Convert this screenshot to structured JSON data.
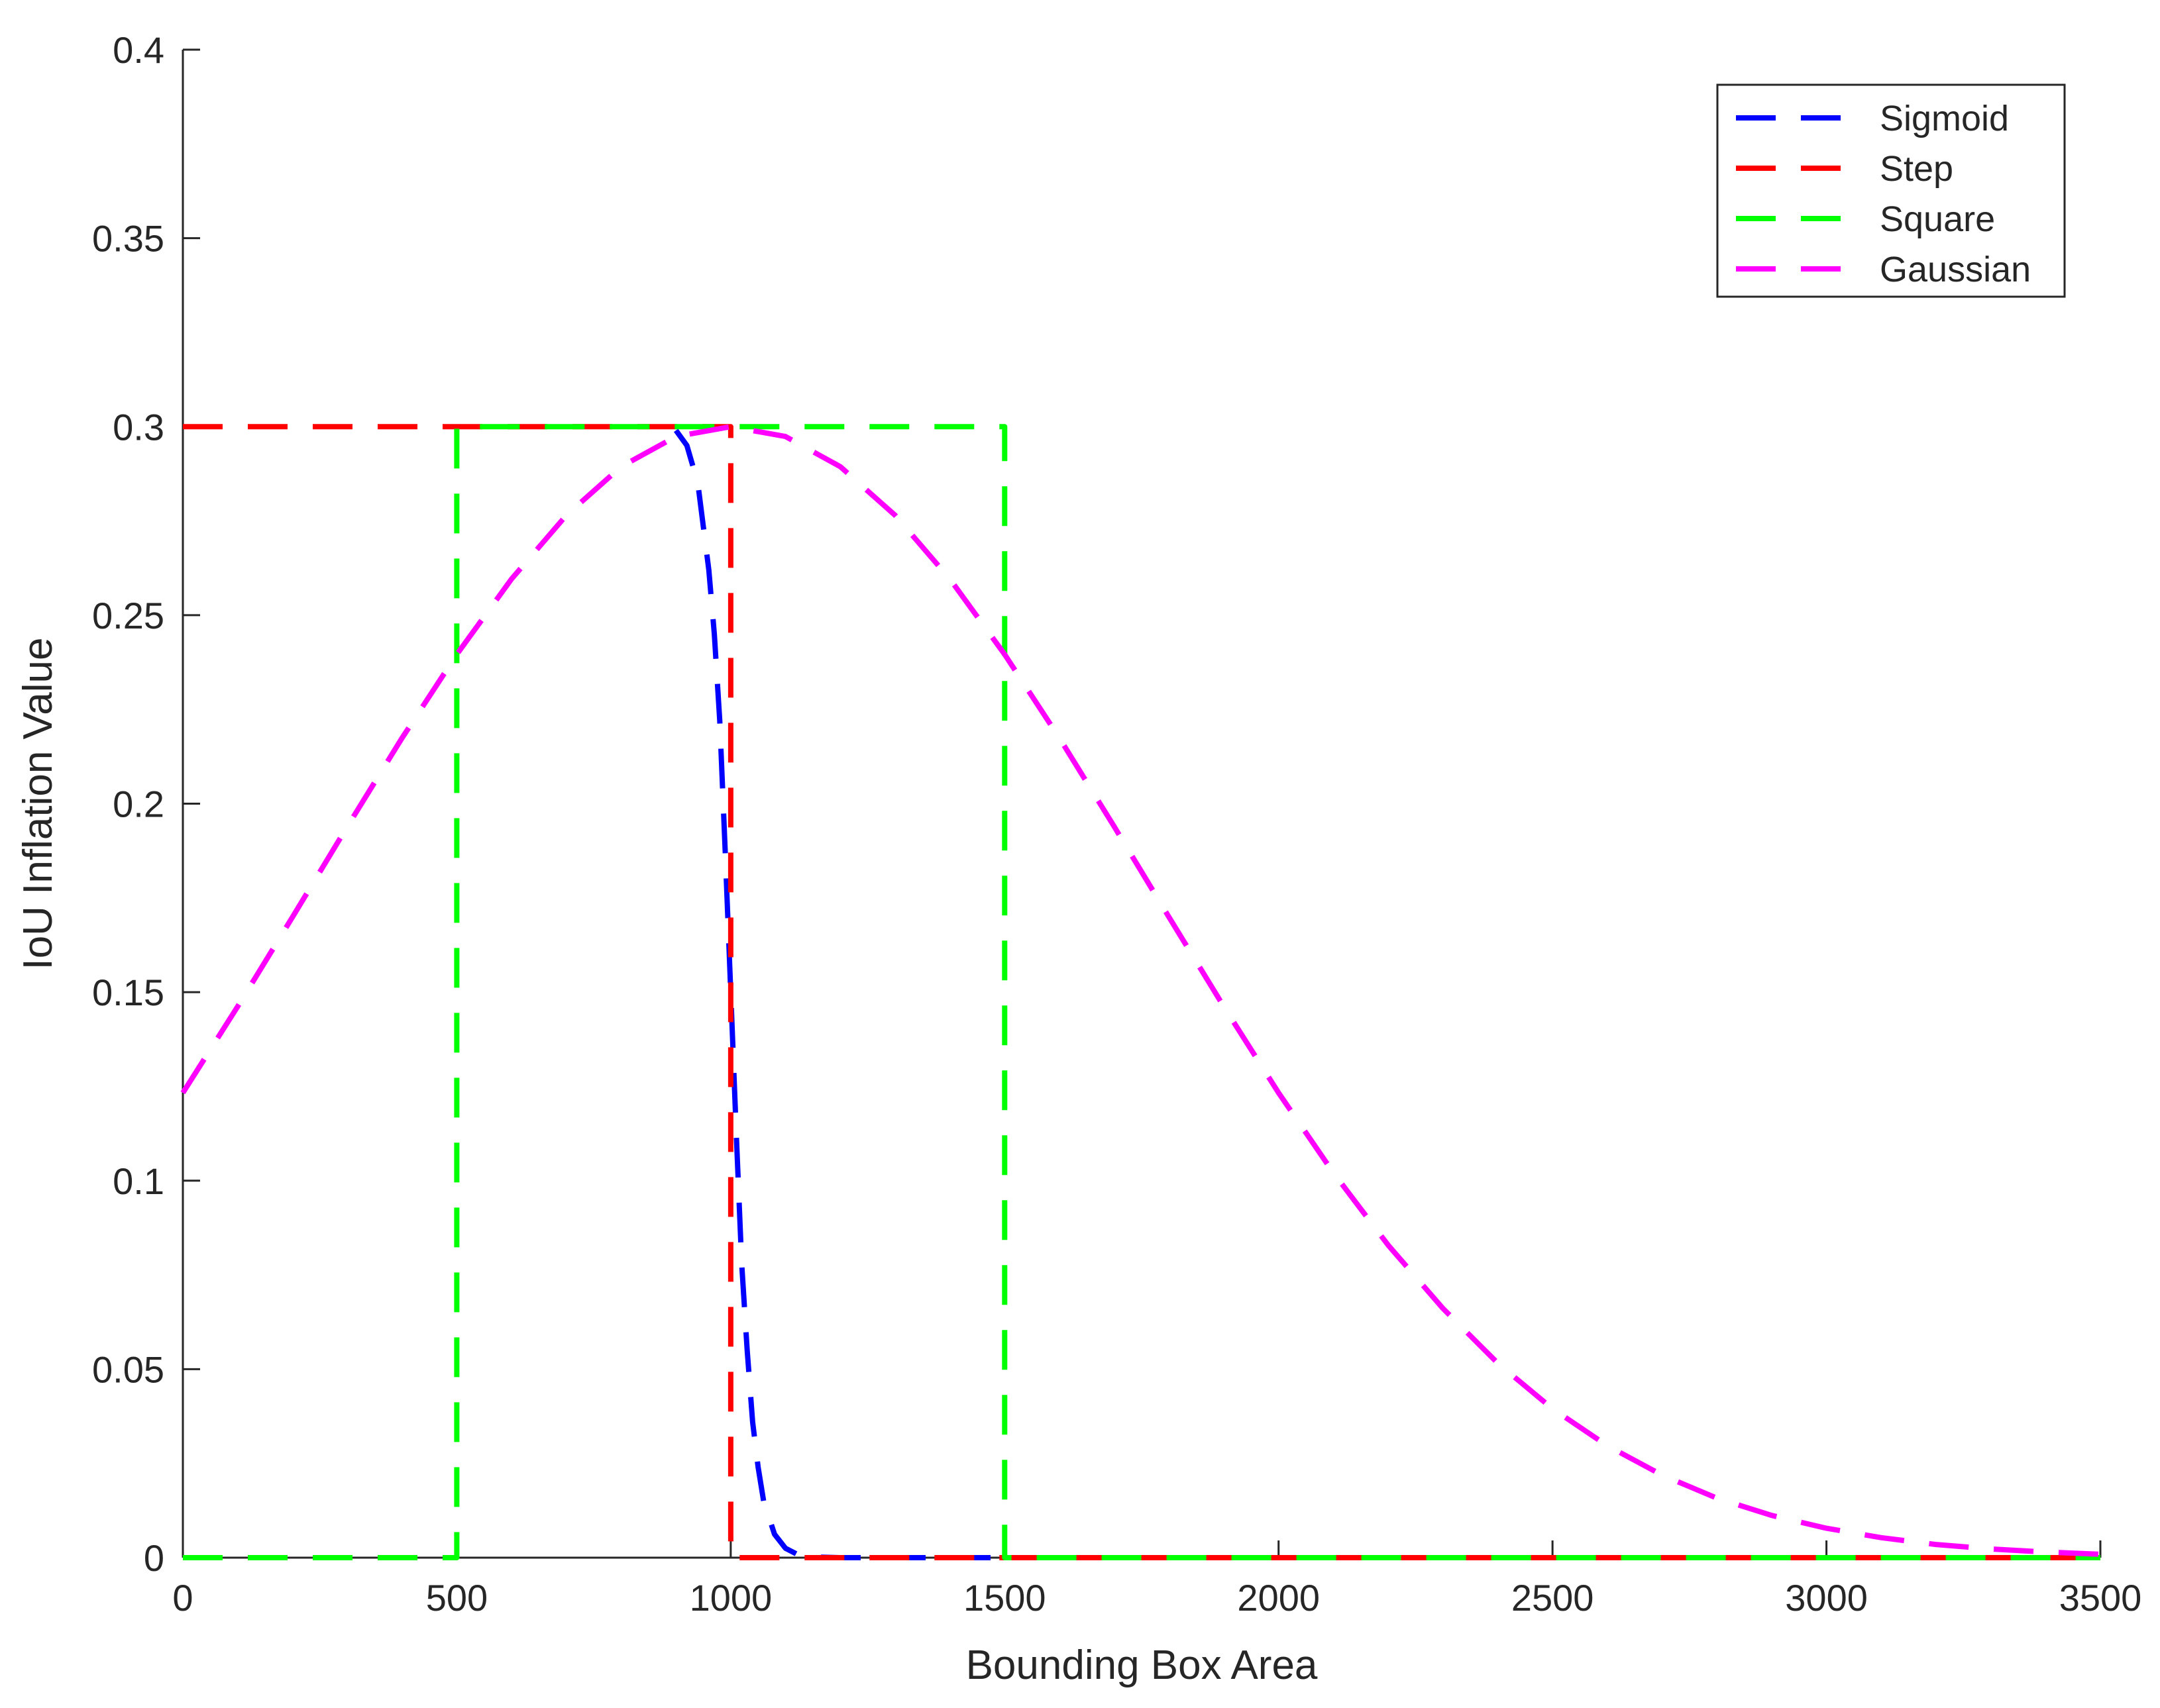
{
  "chart_data": {
    "type": "line",
    "title": "",
    "xlabel": "Bounding Box Area",
    "ylabel": "IoU Inflation Value",
    "xlim": [
      0,
      3500
    ],
    "ylim": [
      0,
      0.4
    ],
    "xticks": [
      0,
      500,
      1000,
      1500,
      2000,
      2500,
      3000,
      3500
    ],
    "xtick_labels": [
      "0",
      "500",
      "1000",
      "1500",
      "2000",
      "2500",
      "3000",
      "3500"
    ],
    "yticks": [
      0,
      0.05,
      0.1,
      0.15,
      0.2,
      0.25,
      0.3,
      0.35,
      0.4
    ],
    "ytick_labels": [
      "0",
      "0.05",
      "0.1",
      "0.15",
      "0.2",
      "0.25",
      "0.3",
      "0.35",
      "0.4"
    ],
    "legend_position": "top-right",
    "series": [
      {
        "name": "Sigmoid",
        "color": "#0000ff",
        "style": "dashed",
        "x": [
          900,
          920,
          940,
          960,
          970,
          980,
          990,
          1000,
          1010,
          1020,
          1030,
          1040,
          1050,
          1060,
          1080,
          1100,
          1120,
          1150,
          1200,
          1500,
          2000,
          2500,
          3000,
          3500
        ],
        "y": [
          0.299,
          0.295,
          0.285,
          0.262,
          0.245,
          0.222,
          0.187,
          0.15,
          0.113,
          0.078,
          0.055,
          0.036,
          0.024,
          0.015,
          0.0062,
          0.0025,
          0.001,
          0.0002,
          0.0,
          0.0,
          0.0,
          0.0,
          0.0,
          0.0
        ]
      },
      {
        "name": "Step",
        "color": "#ff0000",
        "style": "dashed",
        "x": [
          0,
          1000,
          1000,
          3500
        ],
        "y": [
          0.3,
          0.3,
          0.0,
          0.0
        ]
      },
      {
        "name": "Square",
        "color": "#00ff00",
        "style": "dashed",
        "x": [
          0,
          500,
          500,
          1500,
          1500,
          3500
        ],
        "y": [
          0.0,
          0.0,
          0.3,
          0.3,
          0.0,
          0.0
        ]
      },
      {
        "name": "Gaussian",
        "color": "#ff00ff",
        "style": "dashed",
        "x": [
          0,
          100,
          200,
          300,
          400,
          500,
          600,
          700,
          800,
          900,
          1000,
          1100,
          1200,
          1300,
          1400,
          1500,
          1600,
          1700,
          1800,
          1900,
          2000,
          2100,
          2200,
          2300,
          2400,
          2500,
          2600,
          2700,
          2800,
          2900,
          3000,
          3100,
          3200,
          3300,
          3400,
          3500
        ],
        "y": [
          0.1233,
          0.1462,
          0.1699,
          0.1939,
          0.2174,
          0.2396,
          0.2596,
          0.2765,
          0.2894,
          0.2974,
          0.3,
          0.2974,
          0.2894,
          0.2765,
          0.2596,
          0.2396,
          0.2174,
          0.1939,
          0.1699,
          0.1462,
          0.1233,
          0.1021,
          0.0829,
          0.0661,
          0.0516,
          0.0395,
          0.0297,
          0.0219,
          0.0158,
          0.0112,
          0.0078,
          0.0053,
          0.0035,
          0.0023,
          0.0015,
          0.0009
        ]
      }
    ]
  }
}
